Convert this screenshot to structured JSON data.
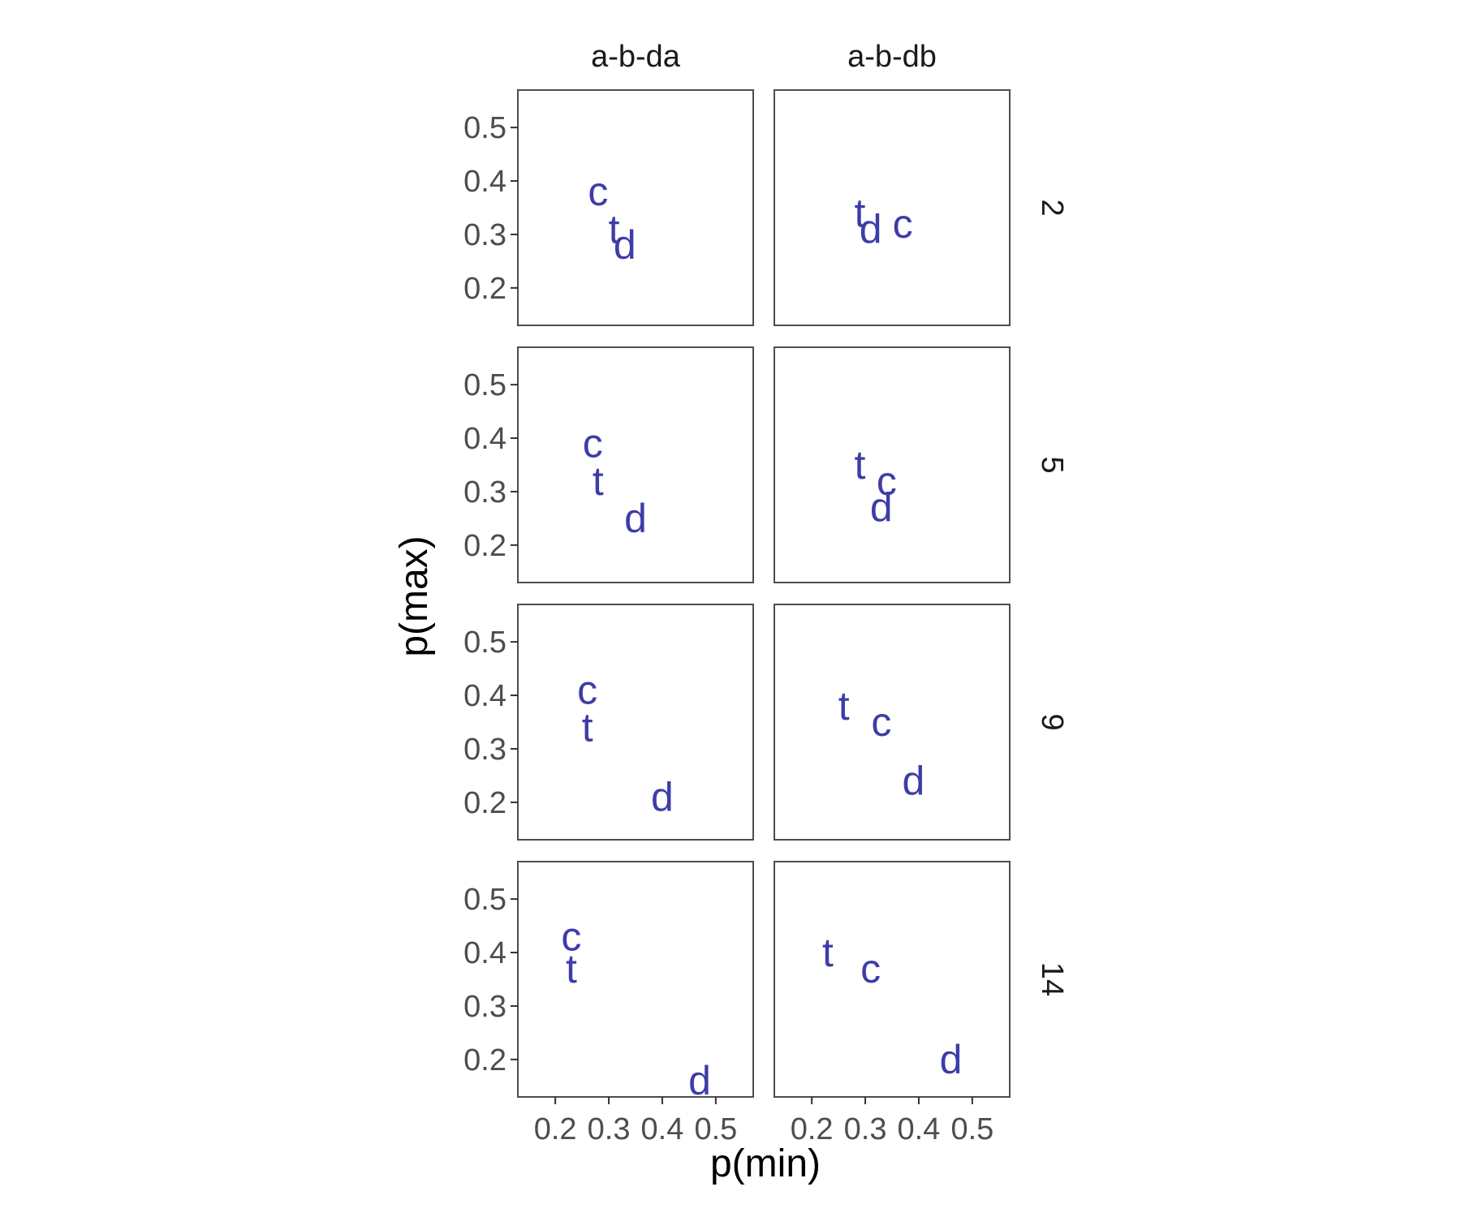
{
  "chart_data": {
    "type": "scatter",
    "xlabel": "p(min)",
    "ylabel": "p(max)",
    "xlim": [
      0.13,
      0.57
    ],
    "ylim": [
      0.13,
      0.57
    ],
    "x_ticks": [
      0.2,
      0.3,
      0.4,
      0.5
    ],
    "y_ticks": [
      0.2,
      0.3,
      0.4,
      0.5
    ],
    "x_tick_labels": [
      "0.2",
      "0.3",
      "0.4",
      "0.5"
    ],
    "y_tick_labels": [
      "0.2",
      "0.3",
      "0.4",
      "0.5"
    ],
    "columns": [
      "a-b-da",
      "a-b-db"
    ],
    "rows": [
      "2",
      "5",
      "9",
      "14"
    ],
    "grid": false,
    "point_color": "#3d3da8",
    "panel_border_color": "#4d4d4d",
    "panels": [
      {
        "column": "a-b-da",
        "row": "2",
        "points": [
          {
            "label": "c",
            "x": 0.28,
            "y": 0.38
          },
          {
            "label": "t",
            "x": 0.31,
            "y": 0.31
          },
          {
            "label": "d",
            "x": 0.33,
            "y": 0.28
          }
        ]
      },
      {
        "column": "a-b-db",
        "row": "2",
        "points": [
          {
            "label": "t",
            "x": 0.29,
            "y": 0.34
          },
          {
            "label": "d",
            "x": 0.31,
            "y": 0.31
          },
          {
            "label": "c",
            "x": 0.37,
            "y": 0.32
          }
        ]
      },
      {
        "column": "a-b-da",
        "row": "5",
        "points": [
          {
            "label": "c",
            "x": 0.27,
            "y": 0.39
          },
          {
            "label": "t",
            "x": 0.28,
            "y": 0.32
          },
          {
            "label": "d",
            "x": 0.35,
            "y": 0.25
          }
        ]
      },
      {
        "column": "a-b-db",
        "row": "5",
        "points": [
          {
            "label": "t",
            "x": 0.29,
            "y": 0.35
          },
          {
            "label": "c",
            "x": 0.34,
            "y": 0.32
          },
          {
            "label": "d",
            "x": 0.33,
            "y": 0.27
          }
        ]
      },
      {
        "column": "a-b-da",
        "row": "9",
        "points": [
          {
            "label": "c",
            "x": 0.26,
            "y": 0.41
          },
          {
            "label": "t",
            "x": 0.26,
            "y": 0.34
          },
          {
            "label": "d",
            "x": 0.4,
            "y": 0.21
          }
        ]
      },
      {
        "column": "a-b-db",
        "row": "9",
        "points": [
          {
            "label": "t",
            "x": 0.26,
            "y": 0.38
          },
          {
            "label": "c",
            "x": 0.33,
            "y": 0.35
          },
          {
            "label": "d",
            "x": 0.39,
            "y": 0.24
          }
        ]
      },
      {
        "column": "a-b-da",
        "row": "14",
        "points": [
          {
            "label": "c",
            "x": 0.23,
            "y": 0.43
          },
          {
            "label": "t",
            "x": 0.23,
            "y": 0.37
          },
          {
            "label": "d",
            "x": 0.47,
            "y": 0.16
          }
        ]
      },
      {
        "column": "a-b-db",
        "row": "14",
        "points": [
          {
            "label": "t",
            "x": 0.23,
            "y": 0.4
          },
          {
            "label": "c",
            "x": 0.31,
            "y": 0.37
          },
          {
            "label": "d",
            "x": 0.46,
            "y": 0.2
          }
        ]
      }
    ]
  }
}
